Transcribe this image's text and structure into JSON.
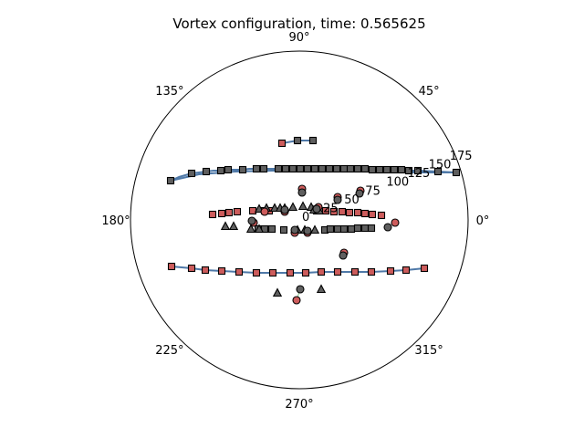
{
  "chart_data": {
    "type": "scatter",
    "projection": "polar",
    "title": "Vortex configuration, time: 0.565625",
    "angle_ticks": [
      "0°",
      "45°",
      "90°",
      "135°",
      "180°",
      "225°",
      "270°",
      "315°"
    ],
    "angle_tick_values_deg": [
      0,
      45,
      90,
      135,
      180,
      225,
      270,
      315
    ],
    "radial_ticks": [
      "0",
      "25",
      "50",
      "75",
      "100",
      "125",
      "150",
      "175"
    ],
    "radial_tick_values": [
      0,
      25,
      50,
      75,
      100,
      125,
      150,
      175
    ],
    "rlim": [
      0,
      185
    ],
    "grid": false,
    "legend": "none",
    "colors": {
      "red_marker": "#cd5c5c",
      "gray_marker": "#5f5f5f",
      "marker_edge": "#000000",
      "vortex_line": "#4f79a8",
      "link_line": "#7fbf7f"
    },
    "marker_legend": {
      "red_circle": "red circle",
      "gray_circle": "gray circle",
      "gray_triangle": "gray triangle",
      "red_square": "red square",
      "gray_square": "gray square"
    },
    "lines": [
      {
        "color": "#4f79a8",
        "points": [
          [
            -19,
            84
          ],
          [
            -2,
            87
          ],
          [
            15,
            87
          ]
        ]
      },
      {
        "color": "#4f79a8",
        "points": [
          [
            -141,
            43
          ],
          [
            -132,
            47
          ],
          [
            -125,
            49
          ],
          [
            -118,
            51
          ],
          [
            -110,
            52
          ],
          [
            -102,
            53
          ],
          [
            -94,
            54
          ],
          [
            -86,
            54
          ],
          [
            -78,
            55
          ],
          [
            -70,
            55
          ],
          [
            -62,
            55
          ],
          [
            -55,
            56
          ],
          [
            -47,
            56
          ],
          [
            -39,
            56
          ],
          [
            -31,
            56
          ],
          [
            -23,
            56
          ],
          [
            -15,
            56
          ],
          [
            -7,
            56
          ],
          [
            1,
            56
          ],
          [
            9,
            56
          ],
          [
            17,
            56
          ],
          [
            25,
            56
          ],
          [
            33,
            56
          ],
          [
            41,
            56
          ],
          [
            49,
            56
          ],
          [
            56,
            56
          ],
          [
            64,
            56
          ],
          [
            72,
            56
          ],
          [
            80,
            55
          ],
          [
            88,
            55
          ],
          [
            96,
            55
          ],
          [
            104,
            55
          ],
          [
            112,
            55
          ],
          [
            120,
            54
          ],
          [
            130,
            54
          ],
          [
            152,
            53
          ],
          [
            172,
            52
          ]
        ]
      },
      {
        "color": "#4f79a8",
        "points": [
          [
            -141,
            43
          ],
          [
            -110,
            50
          ],
          [
            -70,
            53
          ],
          [
            -30,
            54
          ],
          [
            10,
            54
          ],
          [
            50,
            54
          ],
          [
            90,
            53
          ],
          [
            130,
            52
          ],
          [
            172,
            52
          ]
        ]
      },
      {
        "color": "#4f79a8",
        "points": [
          [
            -140,
            -51
          ],
          [
            -118,
            -53
          ],
          [
            -103,
            -55
          ],
          [
            -85,
            -56
          ],
          [
            -66,
            -57
          ],
          [
            -47,
            -58
          ],
          [
            -29,
            -58
          ],
          [
            -10,
            -58
          ],
          [
            7,
            -58
          ],
          [
            24,
            -57
          ],
          [
            42,
            -57
          ],
          [
            61,
            -57
          ],
          [
            79,
            -57
          ],
          [
            100,
            -56
          ],
          [
            117,
            -55
          ],
          [
            137,
            -53
          ]
        ]
      },
      {
        "color": "#7fbf7f",
        "points": [
          [
            1,
            -76
          ],
          [
            -3,
            -88
          ]
        ]
      }
    ],
    "points": [
      {
        "m": "red_square",
        "x": -19,
        "y": 84
      },
      {
        "m": "gray_square",
        "x": -2,
        "y": 87
      },
      {
        "m": "gray_square",
        "x": 15,
        "y": 87
      },
      {
        "m": "gray_square",
        "x": -141,
        "y": 43
      },
      {
        "m": "gray_square",
        "x": -118,
        "y": 51
      },
      {
        "m": "gray_square",
        "x": -102,
        "y": 53
      },
      {
        "m": "gray_square",
        "x": -86,
        "y": 54
      },
      {
        "m": "gray_square",
        "x": -78,
        "y": 55
      },
      {
        "m": "gray_square",
        "x": -62,
        "y": 55
      },
      {
        "m": "gray_square",
        "x": -47,
        "y": 56
      },
      {
        "m": "gray_square",
        "x": -39,
        "y": 56
      },
      {
        "m": "gray_square",
        "x": -23,
        "y": 56
      },
      {
        "m": "gray_square",
        "x": -15,
        "y": 56
      },
      {
        "m": "gray_square",
        "x": -7,
        "y": 56
      },
      {
        "m": "gray_square",
        "x": 1,
        "y": 56
      },
      {
        "m": "gray_square",
        "x": 9,
        "y": 56
      },
      {
        "m": "gray_square",
        "x": 17,
        "y": 56
      },
      {
        "m": "gray_square",
        "x": 25,
        "y": 56
      },
      {
        "m": "gray_square",
        "x": 33,
        "y": 56
      },
      {
        "m": "gray_square",
        "x": 41,
        "y": 56
      },
      {
        "m": "gray_square",
        "x": 49,
        "y": 56
      },
      {
        "m": "gray_square",
        "x": 56,
        "y": 56
      },
      {
        "m": "gray_square",
        "x": 64,
        "y": 56
      },
      {
        "m": "gray_square",
        "x": 72,
        "y": 56
      },
      {
        "m": "gray_square",
        "x": 80,
        "y": 55
      },
      {
        "m": "gray_square",
        "x": 88,
        "y": 55
      },
      {
        "m": "gray_square",
        "x": 96,
        "y": 55
      },
      {
        "m": "gray_square",
        "x": 104,
        "y": 55
      },
      {
        "m": "gray_square",
        "x": 112,
        "y": 55
      },
      {
        "m": "gray_square",
        "x": 120,
        "y": 54
      },
      {
        "m": "gray_square",
        "x": 130,
        "y": 54
      },
      {
        "m": "gray_square",
        "x": 152,
        "y": 53
      },
      {
        "m": "gray_square",
        "x": 172,
        "y": 52
      },
      {
        "m": "red_square",
        "x": -140,
        "y": -51
      },
      {
        "m": "red_square",
        "x": -118,
        "y": -53
      },
      {
        "m": "red_square",
        "x": -103,
        "y": -55
      },
      {
        "m": "red_square",
        "x": -85,
        "y": -56
      },
      {
        "m": "red_square",
        "x": -66,
        "y": -57
      },
      {
        "m": "red_square",
        "x": -47,
        "y": -58
      },
      {
        "m": "red_square",
        "x": -29,
        "y": -58
      },
      {
        "m": "red_square",
        "x": -10,
        "y": -58
      },
      {
        "m": "red_square",
        "x": 7,
        "y": -58
      },
      {
        "m": "red_square",
        "x": 24,
        "y": -57
      },
      {
        "m": "red_square",
        "x": 42,
        "y": -57
      },
      {
        "m": "red_square",
        "x": 61,
        "y": -57
      },
      {
        "m": "red_square",
        "x": 79,
        "y": -57
      },
      {
        "m": "red_square",
        "x": 100,
        "y": -56
      },
      {
        "m": "red_square",
        "x": 117,
        "y": -55
      },
      {
        "m": "red_square",
        "x": 137,
        "y": -53
      },
      {
        "m": "red_square",
        "x": -95,
        "y": 6
      },
      {
        "m": "red_square",
        "x": -85,
        "y": 7
      },
      {
        "m": "red_square",
        "x": -77,
        "y": 8
      },
      {
        "m": "red_square",
        "x": -68,
        "y": 9
      },
      {
        "m": "red_square",
        "x": -51,
        "y": 10
      },
      {
        "m": "red_square",
        "x": -38,
        "y": 10
      },
      {
        "m": "red_square",
        "x": -33,
        "y": 10
      },
      {
        "m": "red_square",
        "x": 19,
        "y": 10
      },
      {
        "m": "red_square",
        "x": 29,
        "y": 10
      },
      {
        "m": "red_square",
        "x": 38,
        "y": 9
      },
      {
        "m": "red_square",
        "x": 47,
        "y": 9
      },
      {
        "m": "red_square",
        "x": 55,
        "y": 8
      },
      {
        "m": "red_square",
        "x": 64,
        "y": 8
      },
      {
        "m": "red_square",
        "x": 72,
        "y": 7
      },
      {
        "m": "red_square",
        "x": 80,
        "y": 6
      },
      {
        "m": "red_square",
        "x": 90,
        "y": 5
      },
      {
        "m": "gray_square",
        "x": -45,
        "y": -10
      },
      {
        "m": "gray_square",
        "x": -38,
        "y": -10
      },
      {
        "m": "gray_square",
        "x": -30,
        "y": -10
      },
      {
        "m": "gray_square",
        "x": -17,
        "y": -11
      },
      {
        "m": "gray_square",
        "x": 28,
        "y": -11
      },
      {
        "m": "gray_square",
        "x": 34,
        "y": -10
      },
      {
        "m": "gray_square",
        "x": 42,
        "y": -10
      },
      {
        "m": "gray_square",
        "x": 49,
        "y": -10
      },
      {
        "m": "gray_square",
        "x": 57,
        "y": -10
      },
      {
        "m": "gray_square",
        "x": 64,
        "y": -9
      },
      {
        "m": "gray_square",
        "x": 72,
        "y": -9
      },
      {
        "m": "gray_square",
        "x": 79,
        "y": -9
      },
      {
        "m": "gray_triangle",
        "x": -44,
        "y": 12
      },
      {
        "m": "gray_triangle",
        "x": -36,
        "y": 13
      },
      {
        "m": "gray_triangle",
        "x": -27,
        "y": 13
      },
      {
        "m": "gray_triangle",
        "x": -21,
        "y": 13
      },
      {
        "m": "gray_triangle",
        "x": -16,
        "y": 13
      },
      {
        "m": "gray_triangle",
        "x": -7,
        "y": 14
      },
      {
        "m": "gray_triangle",
        "x": 4,
        "y": 15
      },
      {
        "m": "gray_triangle",
        "x": 13,
        "y": 14
      },
      {
        "m": "gray_triangle",
        "x": 16,
        "y": 11
      },
      {
        "m": "gray_triangle",
        "x": 22,
        "y": 10
      },
      {
        "m": "gray_triangle",
        "x": -81,
        "y": -7
      },
      {
        "m": "gray_triangle",
        "x": -72,
        "y": -7
      },
      {
        "m": "gray_triangle",
        "x": -53,
        "y": -10
      },
      {
        "m": "gray_triangle",
        "x": -44,
        "y": -10
      },
      {
        "m": "gray_triangle",
        "x": -2,
        "y": -11
      },
      {
        "m": "gray_triangle",
        "x": 6,
        "y": -11
      },
      {
        "m": "gray_triangle",
        "x": 17,
        "y": -11
      },
      {
        "m": "gray_triangle",
        "x": -24,
        "y": -80
      },
      {
        "m": "gray_triangle",
        "x": 24,
        "y": -76
      },
      {
        "m": "red_circle",
        "x": 3,
        "y": 34
      },
      {
        "m": "red_circle",
        "x": 42,
        "y": 25
      },
      {
        "m": "red_circle",
        "x": 67,
        "y": 32
      },
      {
        "m": "red_circle",
        "x": 21,
        "y": 14
      },
      {
        "m": "red_circle",
        "x": -38,
        "y": 9
      },
      {
        "m": "red_circle",
        "x": -16,
        "y": 9
      },
      {
        "m": "red_circle",
        "x": -50,
        "y": -3
      },
      {
        "m": "red_circle",
        "x": -5,
        "y": -14
      },
      {
        "m": "red_circle",
        "x": 9,
        "y": -14
      },
      {
        "m": "red_circle",
        "x": 105,
        "y": -3
      },
      {
        "m": "red_circle",
        "x": 49,
        "y": -36
      },
      {
        "m": "red_circle",
        "x": -3,
        "y": -88
      },
      {
        "m": "gray_circle",
        "x": 3,
        "y": 30
      },
      {
        "m": "gray_circle",
        "x": 42,
        "y": 22
      },
      {
        "m": "gray_circle",
        "x": 66,
        "y": 29
      },
      {
        "m": "gray_circle",
        "x": 19,
        "y": 12
      },
      {
        "m": "gray_circle",
        "x": -16,
        "y": 11
      },
      {
        "m": "gray_circle",
        "x": -52,
        "y": -1
      },
      {
        "m": "gray_circle",
        "x": -5,
        "y": -11
      },
      {
        "m": "gray_circle",
        "x": 9,
        "y": -12
      },
      {
        "m": "gray_circle",
        "x": 97,
        "y": -8
      },
      {
        "m": "gray_circle",
        "x": 48,
        "y": -39
      },
      {
        "m": "gray_circle",
        "x": 1,
        "y": -76
      }
    ]
  }
}
